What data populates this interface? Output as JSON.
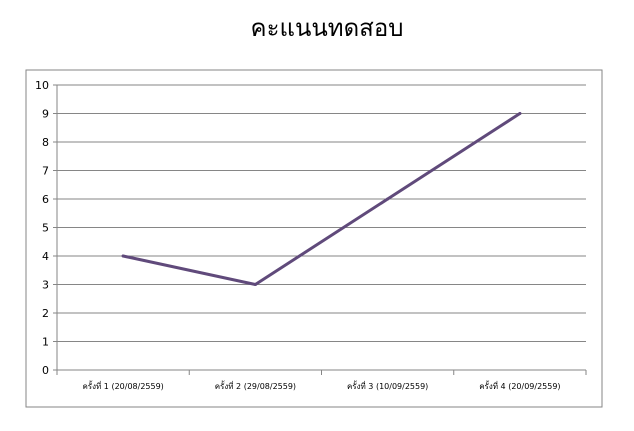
{
  "chart_data": {
    "type": "line",
    "title": "คะแนนทดสอบ",
    "xlabel": "",
    "ylabel": "",
    "categories": [
      "ครั้งที่ 1 (20/08/2559)",
      "ครั้งที่ 2 (29/08/2559)",
      "ครั้งที่ 3 (10/09/2559)",
      "ครั้งที่ 4 (20/09/2559)"
    ],
    "series": [
      {
        "values": [
          4,
          3,
          6,
          9
        ],
        "color": "#604a7b"
      }
    ],
    "ylim": [
      0,
      10
    ],
    "yticks": [
      "0",
      "1",
      "2",
      "3",
      "4",
      "5",
      "6",
      "7",
      "8",
      "9",
      "10"
    ],
    "grid": true,
    "legend": "none"
  }
}
